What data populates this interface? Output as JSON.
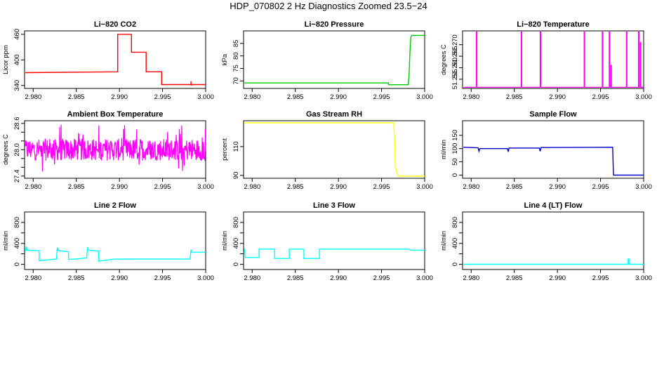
{
  "title": "HDP_070802  2 Hz Diagnostics Zoomed 23.5−24",
  "x_tick_labels": [
    "2.980",
    "2.985",
    "2.990",
    "2.995",
    "3.000"
  ],
  "chart_data": [
    {
      "type": "line",
      "title": "Li−820 CO2",
      "ylabel": "Licor ppm",
      "color": "#ff0000",
      "xlim": [
        2.979,
        3.0
      ],
      "ylim": [
        333,
        468
      ],
      "yticks": [
        340,
        400,
        460
      ],
      "ytick_labels": [
        "340",
        "400",
        "460"
      ],
      "x": [
        2.9791,
        2.9898,
        2.9898,
        2.9914,
        2.9914,
        2.9931,
        2.9931,
        2.9949,
        2.9949,
        2.9983,
        2.9983,
        2.9983,
        2.99835,
        3.0
      ],
      "y": [
        370,
        372,
        460,
        460,
        418,
        418,
        372,
        372,
        342,
        342,
        350,
        340,
        342,
        342
      ]
    },
    {
      "type": "line",
      "title": "Li−820 Pressure",
      "ylabel": "kPa",
      "color": "#00cc00",
      "xlim": [
        2.979,
        3.0
      ],
      "ylim": [
        67,
        90
      ],
      "yticks": [
        70,
        75,
        80,
        85
      ],
      "ytick_labels": [
        "70",
        "75",
        "80",
        "85"
      ],
      "x": [
        2.9791,
        2.9958,
        2.9958,
        2.9981,
        2.9982,
        2.9983,
        2.9984,
        2.9985,
        3.0
      ],
      "y": [
        69.2,
        69.2,
        68.5,
        68.5,
        73,
        82,
        87.5,
        88.2,
        88.2
      ]
    },
    {
      "type": "line",
      "title": "Li−820 Temperature",
      "ylabel": "degrees C",
      "color": "#ff00ff",
      "xlim": [
        2.979,
        3.0
      ],
      "ylim": [
        51.251,
        51.276
      ],
      "yticks": [
        51.255,
        51.26,
        51.265,
        51.27
      ],
      "ytick_labels": [
        "51.255",
        "51.260",
        "51.265",
        "51.270"
      ],
      "spike_x": [
        2.9806,
        2.9858,
        2.988,
        2.9931,
        2.9952,
        2.996,
        2.9962,
        2.998,
        2.9994,
        2.9996
      ],
      "spike_top": [
        51.2755,
        51.2755,
        51.2755,
        51.2755,
        51.2755,
        51.2755,
        51.261,
        51.2755,
        51.2755,
        51.271
      ],
      "baseline": 51.2515
    },
    {
      "type": "line",
      "title": "Ambient Box Temperature",
      "ylabel": "degrees C",
      "color": "#ff00ff",
      "xlim": [
        2.979,
        3.0
      ],
      "ylim": [
        27.35,
        28.66
      ],
      "yticks": [
        27.4,
        27.6,
        27.8,
        28.0,
        28.2,
        28.4,
        28.6
      ],
      "ytick_labels": [
        "27.4",
        "",
        "",
        "28.0",
        "",
        "",
        "28.6"
      ],
      "noise_center": 28.0,
      "noise_amplitude": 0.25
    },
    {
      "type": "line",
      "title": "Gas Stream RH",
      "ylabel": "percent",
      "color": "#ffff00",
      "xlim": [
        2.979,
        3.0
      ],
      "ylim": [
        88,
        128
      ],
      "yticks": [
        90,
        110
      ],
      "ytick_labels": [
        "90",
        "110"
      ],
      "x": [
        2.9791,
        2.9964,
        2.99655,
        2.9966,
        2.9968,
        2.997,
        3.0
      ],
      "y": [
        126.5,
        126.5,
        110,
        96,
        91,
        89.5,
        89.5
      ]
    },
    {
      "type": "line",
      "title": "Sample Flow",
      "ylabel": "ml/min",
      "color": "#0000cc",
      "xlim": [
        2.979,
        3.0
      ],
      "ylim": [
        -12,
        205
      ],
      "yticks": [
        0,
        50,
        100,
        150
      ],
      "ytick_labels": [
        "0",
        "50",
        "100",
        "150"
      ],
      "x": [
        2.9791,
        2.9808,
        2.9809,
        2.981,
        2.9842,
        2.9843,
        2.9844,
        2.9879,
        2.988,
        2.9881,
        2.9964,
        2.9965,
        3.0
      ],
      "y": [
        105,
        103,
        90,
        100,
        100,
        88,
        102,
        102,
        90,
        104,
        105,
        0,
        0
      ]
    },
    {
      "type": "line",
      "title": "Line 2 Flow",
      "ylabel": "ml/min",
      "color": "#00ffff",
      "xlim": [
        2.979,
        3.0
      ],
      "ylim": [
        -100,
        1000
      ],
      "yticks": [
        0,
        200,
        400,
        600,
        800
      ],
      "ytick_labels": [
        "0",
        "",
        "400",
        "",
        "800"
      ],
      "x": [
        2.9791,
        2.9792,
        2.9793,
        2.9807,
        2.9807,
        2.9827,
        2.9828,
        2.9829,
        2.9841,
        2.9841,
        2.9862,
        2.9863,
        2.9864,
        2.9876,
        2.9876,
        2.9895,
        2.9895,
        2.9982,
        2.9983,
        2.9984,
        2.9986,
        3.0
      ],
      "y": [
        250,
        340,
        270,
        260,
        70,
        100,
        320,
        260,
        240,
        90,
        120,
        330,
        270,
        250,
        60,
        100,
        100,
        100,
        280,
        230,
        230,
        230
      ]
    },
    {
      "type": "line",
      "title": "Line 3 Flow",
      "ylabel": "ml/min",
      "color": "#00ffff",
      "xlim": [
        2.979,
        3.0
      ],
      "ylim": [
        -100,
        1000
      ],
      "yticks": [
        0,
        200,
        400,
        600,
        800
      ],
      "ytick_labels": [
        "0",
        "",
        "400",
        "",
        "800"
      ],
      "x": [
        2.9791,
        2.9792,
        2.9793,
        2.9808,
        2.9808,
        2.9826,
        2.9826,
        2.9843,
        2.9843,
        2.986,
        2.986,
        2.9878,
        2.9878,
        2.9982,
        2.9984,
        3.0
      ],
      "y": [
        300,
        130,
        130,
        130,
        290,
        290,
        110,
        110,
        290,
        290,
        110,
        110,
        290,
        290,
        270,
        270
      ]
    },
    {
      "type": "line",
      "title": "Line 4 (LT) Flow",
      "ylabel": "ml/min",
      "color": "#00ffff",
      "xlim": [
        2.979,
        3.0
      ],
      "ylim": [
        -100,
        1000
      ],
      "yticks": [
        0,
        200,
        400,
        600,
        800
      ],
      "ytick_labels": [
        "0",
        "",
        "400",
        "",
        "800"
      ],
      "x": [
        2.9791,
        2.9982,
        2.9982,
        2.9983,
        2.9983,
        3.0
      ],
      "y": [
        0,
        0,
        100,
        100,
        0,
        0
      ]
    }
  ]
}
